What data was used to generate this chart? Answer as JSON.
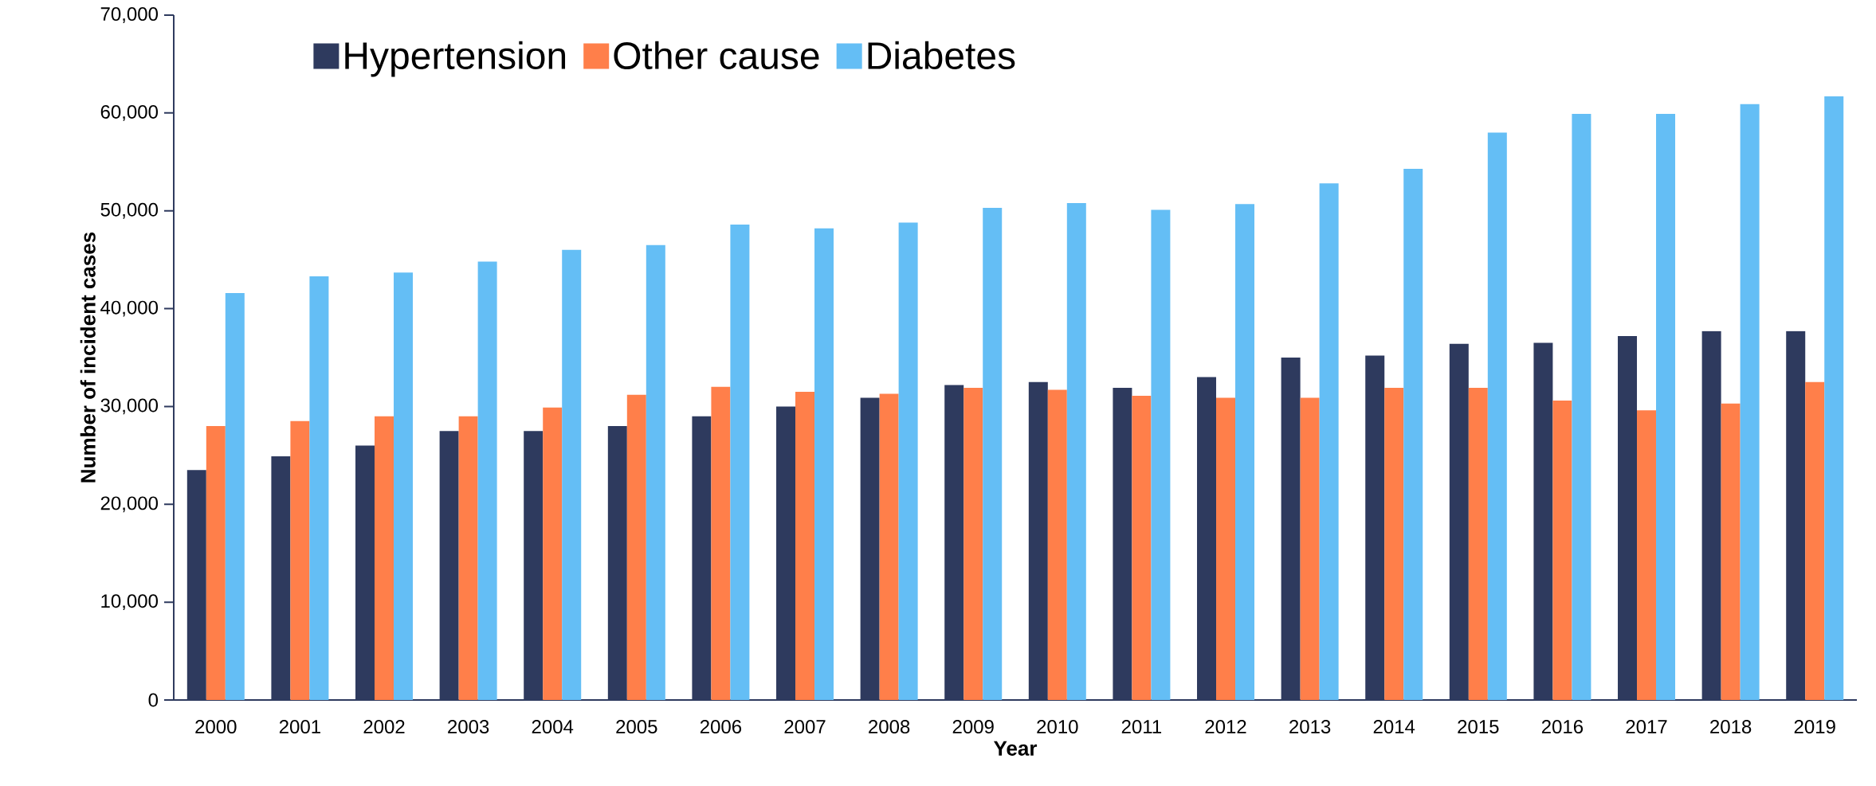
{
  "chart_data": {
    "type": "bar",
    "xlabel": "Year",
    "ylabel": "Number of incident cases",
    "categories": [
      "2000",
      "2001",
      "2002",
      "2003",
      "2004",
      "2005",
      "2006",
      "2007",
      "2008",
      "2009",
      "2010",
      "2011",
      "2012",
      "2013",
      "2014",
      "2015",
      "2016",
      "2017",
      "2018",
      "2019"
    ],
    "series": [
      {
        "name": "Hypertension",
        "color": "#2e3a5e",
        "values": [
          23500,
          24900,
          26000,
          27500,
          27500,
          28000,
          29000,
          30000,
          30900,
          32200,
          32500,
          31900,
          33000,
          35000,
          35200,
          36400,
          36500,
          37200,
          37700,
          37700
        ]
      },
      {
        "name": "Other cause",
        "color": "#ff7f4a",
        "values": [
          28000,
          28500,
          29000,
          29000,
          29900,
          31200,
          32000,
          31500,
          31300,
          31900,
          31700,
          31100,
          30900,
          30900,
          31900,
          31900,
          30600,
          29600,
          30300,
          32500
        ]
      },
      {
        "name": "Diabetes",
        "color": "#64bef5",
        "values": [
          41600,
          43300,
          43700,
          44800,
          46000,
          46500,
          48600,
          48200,
          48800,
          50300,
          50800,
          50100,
          50700,
          52800,
          54300,
          58000,
          59900,
          59900,
          60900,
          61700
        ]
      }
    ],
    "ylim": [
      0,
      70000
    ],
    "yticks": [
      {
        "value": 0,
        "label": "0"
      },
      {
        "value": 10000,
        "label": "10,000"
      },
      {
        "value": 20000,
        "label": "20,000"
      },
      {
        "value": 30000,
        "label": "30,000"
      },
      {
        "value": 40000,
        "label": "40,000"
      },
      {
        "value": 50000,
        "label": "50,000"
      },
      {
        "value": 60000,
        "label": "60,000"
      },
      {
        "value": 70000,
        "label": "70,000"
      }
    ],
    "legend": "top left"
  }
}
